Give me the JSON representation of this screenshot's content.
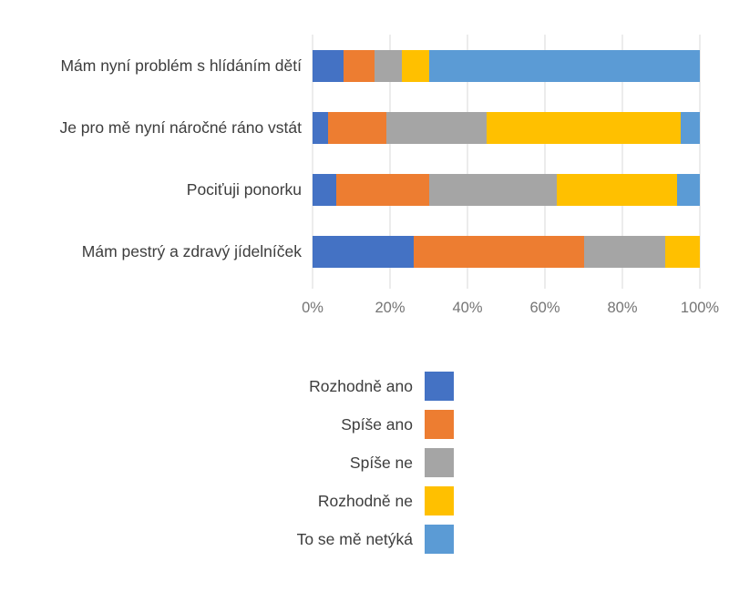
{
  "chart_data": {
    "type": "bar",
    "orientation": "horizontal",
    "stacked": true,
    "title": "",
    "xlabel": "",
    "ylabel": "",
    "grid": true,
    "categories": [
      "Mám nyní problém s hlídáním dětí",
      "Je pro mě nyní náročné ráno vstát",
      "Pociťuji ponorku",
      "Mám pestrý a zdravý jídelníček"
    ],
    "series": [
      {
        "name": "Rozhodně ano",
        "color": "#4472c4",
        "values": [
          8,
          4,
          6,
          26
        ]
      },
      {
        "name": "Spíše ano",
        "color": "#ed7d31",
        "values": [
          8,
          15,
          24,
          44
        ]
      },
      {
        "name": "Spíše ne",
        "color": "#a5a5a5",
        "values": [
          7,
          26,
          33,
          21
        ]
      },
      {
        "name": "Rozhodně ne",
        "color": "#ffc000",
        "values": [
          7,
          50,
          31,
          9
        ]
      },
      {
        "name": "To se mě netýká",
        "color": "#5b9bd5",
        "values": [
          70,
          5,
          6,
          0
        ]
      }
    ],
    "x_axis": {
      "min": 0,
      "max": 100,
      "tick_step": 20,
      "tick_labels": [
        "0%",
        "20%",
        "40%",
        "60%",
        "80%",
        "100%"
      ],
      "unit": "%"
    },
    "legend": {
      "position": "bottom",
      "items": [
        "Rozhodně ano",
        "Spíše ano",
        "Spíše ne",
        "Rozhodně ne",
        "To se mě netýká"
      ]
    },
    "colors": {
      "background": "#ffffff",
      "gridline": "#d9d9d9",
      "axis_text": "#757575",
      "label_text": "#3d3d3d"
    }
  }
}
